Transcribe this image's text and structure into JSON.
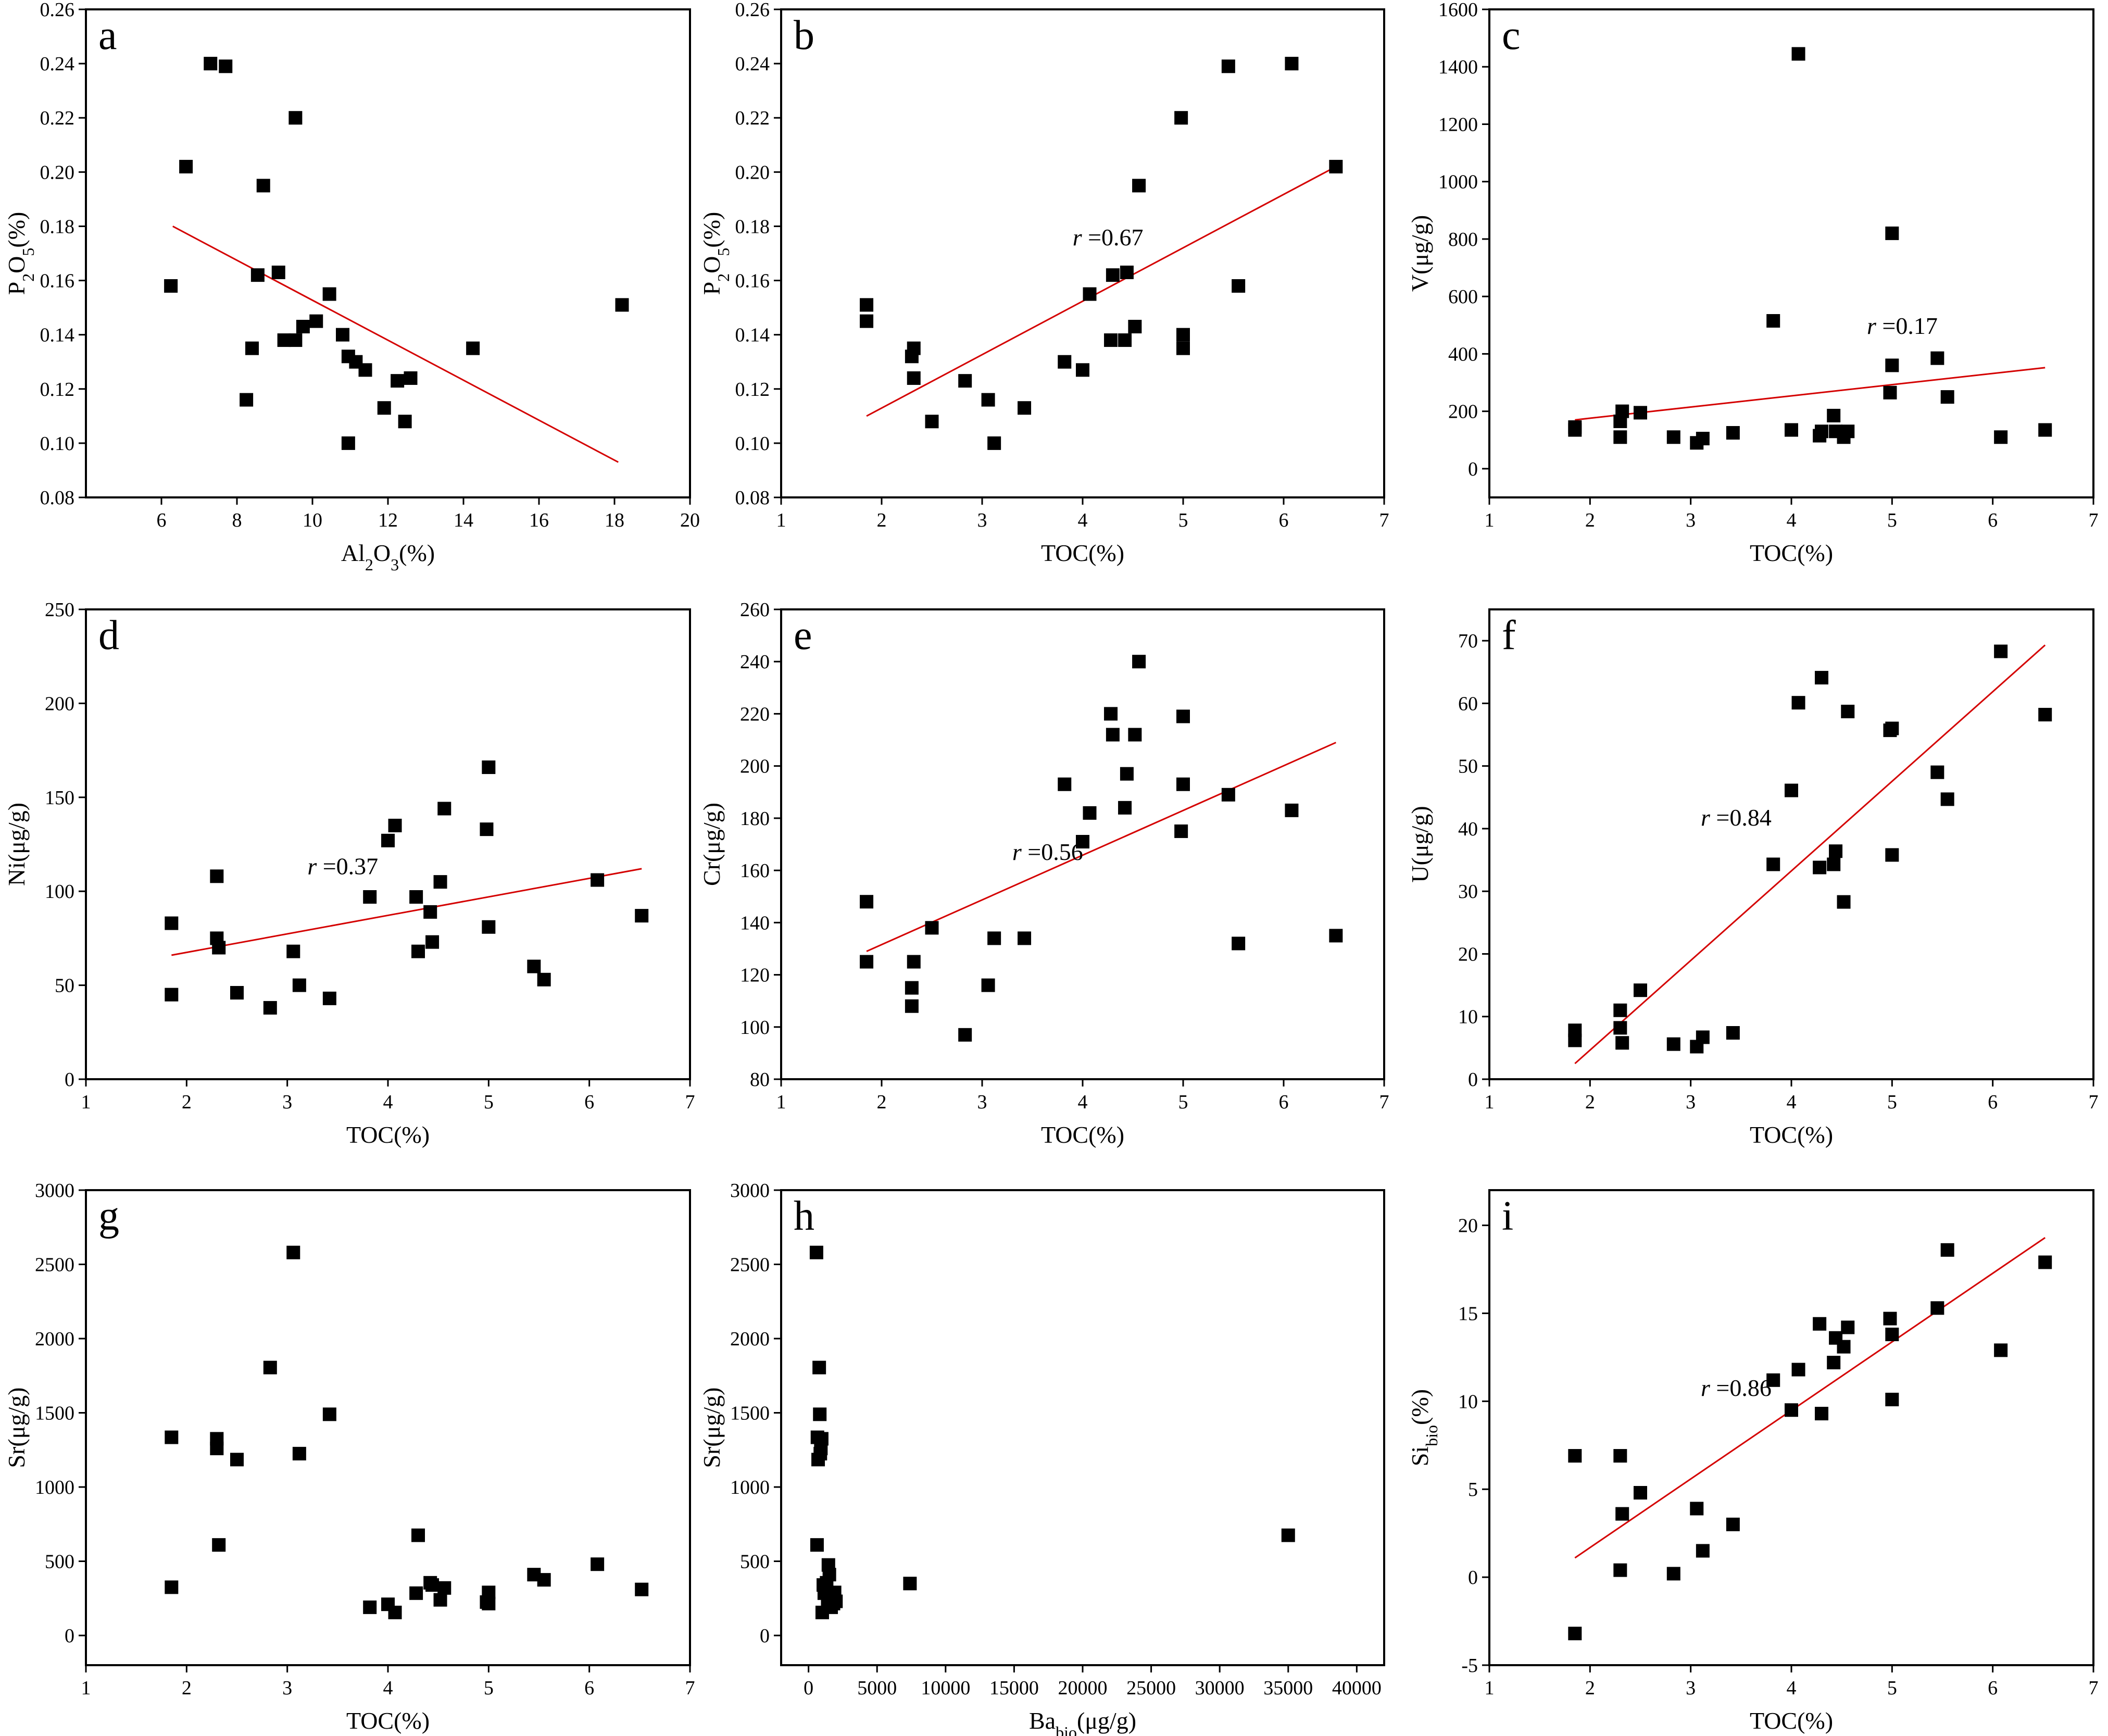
{
  "chart_data": [
    {
      "panel": "a",
      "type": "scatter",
      "xlabel": "Al2O3(%)",
      "ylabel": "P2O5(%)",
      "xlim": [
        4,
        20
      ],
      "ylim": [
        0.08,
        0.26
      ],
      "xticks": [
        6,
        8,
        10,
        12,
        14,
        16,
        18,
        20
      ],
      "yticks": [
        0.08,
        0.1,
        0.12,
        0.14,
        0.16,
        0.18,
        0.2,
        0.22,
        0.24,
        0.26
      ],
      "ydecimals": 2,
      "x": [
        6.25,
        6.65,
        7.3,
        7.7,
        8.25,
        8.4,
        8.55,
        8.7,
        9.1,
        9.25,
        9.55,
        9.55,
        9.75,
        10.1,
        10.45,
        10.8,
        10.95,
        10.95,
        11.15,
        11.4,
        11.9,
        12.25,
        12.45,
        12.6,
        14.25,
        18.2
      ],
      "y": [
        0.158,
        0.202,
        0.24,
        0.239,
        0.116,
        0.135,
        0.162,
        0.195,
        0.163,
        0.138,
        0.22,
        0.138,
        0.143,
        0.145,
        0.155,
        0.14,
        0.132,
        0.1,
        0.13,
        0.127,
        0.113,
        0.123,
        0.108,
        0.124,
        0.135,
        0.151
      ],
      "fit": [
        [
          6.3,
          0.18
        ],
        [
          18.1,
          0.093
        ]
      ],
      "r_label": ""
    },
    {
      "panel": "b",
      "type": "scatter",
      "xlabel": "TOC(%)",
      "ylabel": "P2O5(%)",
      "xlim": [
        1,
        7
      ],
      "ylim": [
        0.08,
        0.26
      ],
      "xticks": [
        1,
        2,
        3,
        4,
        5,
        6,
        7
      ],
      "yticks": [
        0.08,
        0.1,
        0.12,
        0.14,
        0.16,
        0.18,
        0.2,
        0.22,
        0.24,
        0.26
      ],
      "ydecimals": 2,
      "x": [
        1.85,
        1.85,
        2.3,
        2.32,
        2.32,
        2.5,
        2.83,
        3.06,
        3.12,
        3.42,
        3.82,
        4.0,
        4.07,
        4.28,
        4.3,
        4.42,
        4.44,
        4.52,
        4.56,
        4.98,
        5.0,
        5.0,
        5.45,
        5.55,
        6.08,
        6.52
      ],
      "y": [
        0.151,
        0.145,
        0.132,
        0.124,
        0.135,
        0.108,
        0.123,
        0.116,
        0.1,
        0.113,
        0.13,
        0.127,
        0.155,
        0.138,
        0.162,
        0.138,
        0.163,
        0.143,
        0.195,
        0.22,
        0.14,
        0.135,
        0.239,
        0.158,
        0.24,
        0.202
      ],
      "fit": [
        [
          1.85,
          0.11
        ],
        [
          6.52,
          0.202
        ]
      ],
      "r_label": "r = 0.67",
      "r_at": [
        3.9,
        0.173
      ]
    },
    {
      "panel": "c",
      "type": "scatter",
      "xlabel": "TOC(%)",
      "ylabel": "V(μg/g)",
      "xlim": [
        1,
        7
      ],
      "ylim": [
        -100,
        1600
      ],
      "xticks": [
        1,
        2,
        3,
        4,
        5,
        6,
        7
      ],
      "yticks": [
        0,
        200,
        400,
        600,
        800,
        1000,
        1200,
        1400,
        1600
      ],
      "ydecimals": 0,
      "x": [
        1.85,
        1.85,
        2.3,
        2.3,
        2.32,
        2.5,
        2.83,
        3.06,
        3.12,
        3.42,
        3.82,
        4.0,
        4.07,
        4.28,
        4.3,
        4.42,
        4.44,
        4.52,
        4.56,
        4.98,
        5.0,
        5.0,
        5.45,
        5.55,
        6.08,
        6.52
      ],
      "y": [
        145,
        135,
        165,
        110,
        200,
        195,
        110,
        90,
        105,
        125,
        515,
        135,
        1445,
        115,
        130,
        185,
        130,
        110,
        130,
        265,
        360,
        820,
        385,
        250,
        110,
        135
      ],
      "fit": [
        [
          1.85,
          170
        ],
        [
          6.52,
          352
        ]
      ],
      "r_label": "r = 0.17",
      "r_at": [
        4.75,
        470
      ]
    },
    {
      "panel": "d",
      "type": "scatter",
      "xlabel": "TOC(%)",
      "ylabel": "Ni(μg/g)",
      "xlim": [
        1,
        7
      ],
      "ylim": [
        0,
        250
      ],
      "xticks": [
        1,
        2,
        3,
        4,
        5,
        6,
        7
      ],
      "yticks": [
        0,
        50,
        100,
        150,
        200,
        250
      ],
      "ydecimals": 0,
      "x": [
        1.85,
        1.85,
        2.3,
        2.3,
        2.32,
        2.5,
        2.83,
        3.06,
        3.12,
        3.42,
        3.82,
        4.0,
        4.07,
        4.28,
        4.3,
        4.42,
        4.44,
        4.52,
        4.56,
        4.98,
        5.0,
        5.0,
        5.45,
        5.55,
        6.08,
        6.52
      ],
      "y": [
        83,
        45,
        75,
        108,
        70,
        46,
        38,
        68,
        50,
        43,
        97,
        127,
        135,
        97,
        68,
        89,
        73,
        105,
        144,
        133,
        81,
        166,
        60,
        53,
        106,
        87
      ],
      "fit": [
        [
          1.85,
          66
        ],
        [
          6.52,
          112
        ]
      ],
      "r_label": "r = 0.37",
      "r_at": [
        3.2,
        109
      ]
    },
    {
      "panel": "e",
      "type": "scatter",
      "xlabel": "TOC(%)",
      "ylabel": "Cr(μg/g)",
      "xlim": [
        1,
        7
      ],
      "ylim": [
        80,
        260
      ],
      "xticks": [
        1,
        2,
        3,
        4,
        5,
        6,
        7
      ],
      "yticks": [
        80,
        100,
        120,
        140,
        160,
        180,
        200,
        220,
        240,
        260
      ],
      "ydecimals": 0,
      "x": [
        1.85,
        1.85,
        2.3,
        2.3,
        2.32,
        2.5,
        2.83,
        3.06,
        3.12,
        3.42,
        3.82,
        4.0,
        4.07,
        4.28,
        4.3,
        4.42,
        4.44,
        4.52,
        4.56,
        4.98,
        5.0,
        5.0,
        5.45,
        5.55,
        6.08,
        6.52
      ],
      "y": [
        148,
        125,
        115,
        108,
        125,
        138,
        97,
        116,
        134,
        134,
        193,
        171,
        182,
        220,
        212,
        184,
        197,
        212,
        240,
        175,
        193,
        219,
        189,
        132,
        183,
        135
      ],
      "fit": [
        [
          1.85,
          129
        ],
        [
          6.52,
          209
        ]
      ],
      "r_label": "r = 0.56",
      "r_at": [
        3.3,
        164
      ]
    },
    {
      "panel": "f",
      "type": "scatter",
      "xlabel": "TOC(%)",
      "ylabel": "U(μg/g)",
      "xlim": [
        1,
        7
      ],
      "ylim": [
        0,
        75
      ],
      "xticks": [
        1,
        2,
        3,
        4,
        5,
        6,
        7
      ],
      "yticks": [
        0,
        10,
        20,
        30,
        40,
        50,
        60,
        70
      ],
      "ydecimals": 0,
      "x": [
        1.85,
        1.85,
        2.3,
        2.3,
        2.32,
        2.5,
        2.83,
        3.06,
        3.12,
        3.42,
        3.82,
        4.0,
        4.07,
        4.28,
        4.3,
        4.42,
        4.44,
        4.52,
        4.56,
        4.98,
        5.0,
        5.0,
        5.45,
        5.55,
        6.08,
        6.52
      ],
      "y": [
        7.8,
        6.2,
        11.0,
        8.2,
        5.8,
        14.2,
        5.6,
        5.2,
        6.7,
        7.4,
        34.3,
        46.1,
        60.1,
        33.8,
        64.1,
        34.3,
        36.4,
        28.3,
        58.7,
        55.7,
        56.0,
        35.8,
        49.0,
        44.7,
        68.3,
        58.2
      ],
      "fit": [
        [
          1.85,
          2.5
        ],
        [
          6.52,
          69.3
        ]
      ],
      "r_label": "r = 0.84",
      "r_at": [
        3.1,
        40.5
      ]
    },
    {
      "panel": "g",
      "type": "scatter",
      "xlabel": "TOC(%)",
      "ylabel": "Sr(μg/g)",
      "xlim": [
        1,
        7
      ],
      "ylim": [
        -200,
        3000
      ],
      "xticks": [
        1,
        2,
        3,
        4,
        5,
        6,
        7
      ],
      "yticks": [
        0,
        500,
        1000,
        1500,
        2000,
        2500,
        3000
      ],
      "ydecimals": 0,
      "x": [
        1.85,
        1.85,
        2.3,
        2.3,
        2.32,
        2.5,
        2.83,
        3.06,
        3.12,
        3.42,
        3.82,
        4.0,
        4.07,
        4.28,
        4.3,
        4.42,
        4.44,
        4.52,
        4.56,
        4.98,
        5.0,
        5.0,
        5.45,
        5.55,
        6.08,
        6.52
      ],
      "y": [
        1335,
        325,
        1325,
        1260,
        610,
        1185,
        1805,
        2580,
        1225,
        1490,
        190,
        210,
        155,
        285,
        675,
        355,
        340,
        240,
        320,
        225,
        215,
        290,
        410,
        375,
        480,
        310
      ],
      "fit": null,
      "r_label": ""
    },
    {
      "panel": "h",
      "type": "scatter",
      "xlabel": "Babio(μg/g)",
      "ylabel": "Sr(μg/g)",
      "xlim": [
        -2000,
        42000
      ],
      "ylim": [
        -200,
        3000
      ],
      "xticks": [
        0,
        5000,
        10000,
        15000,
        20000,
        25000,
        30000,
        35000,
        40000
      ],
      "yticks": [
        0,
        500,
        1000,
        1500,
        2000,
        2500,
        3000
      ],
      "ydecimals": 0,
      "x": [
        580,
        620,
        650,
        700,
        780,
        820,
        860,
        900,
        960,
        1000,
        1080,
        1150,
        1240,
        1320,
        1400,
        1450,
        1520,
        1580,
        1650,
        1740,
        1820,
        1900,
        2000,
        7400,
        35000
      ],
      "y": [
        2580,
        610,
        1335,
        1185,
        1805,
        1490,
        1225,
        1260,
        1325,
        155,
        340,
        285,
        320,
        355,
        240,
        475,
        410,
        210,
        190,
        225,
        215,
        290,
        230,
        350,
        675
      ],
      "fit": null,
      "r_label": ""
    },
    {
      "panel": "i",
      "type": "scatter",
      "xlabel": "TOC(%)",
      "ylabel": "Sibio(%)",
      "xlim": [
        1,
        7
      ],
      "ylim": [
        -5,
        22
      ],
      "xticks": [
        1,
        2,
        3,
        4,
        5,
        6,
        7
      ],
      "yticks": [
        -5,
        0,
        5,
        10,
        15,
        20
      ],
      "ydecimals": 0,
      "x": [
        1.85,
        1.85,
        2.3,
        2.3,
        2.32,
        2.5,
        2.83,
        3.06,
        3.12,
        3.42,
        3.82,
        4.0,
        4.07,
        4.28,
        4.3,
        4.42,
        4.44,
        4.52,
        4.56,
        4.98,
        5.0,
        5.0,
        5.45,
        5.55,
        6.08,
        6.52
      ],
      "y": [
        6.9,
        -3.2,
        6.9,
        0.4,
        3.6,
        4.8,
        0.2,
        3.9,
        1.5,
        3.0,
        11.2,
        9.5,
        11.8,
        14.4,
        9.3,
        12.2,
        13.6,
        13.1,
        14.2,
        14.7,
        10.1,
        13.8,
        15.3,
        18.6,
        12.9,
        17.9
      ],
      "fit": [
        [
          1.85,
          1.1
        ],
        [
          6.52,
          19.3
        ]
      ],
      "r_label": "r = 0.86",
      "r_at": [
        3.1,
        10.3
      ]
    }
  ]
}
